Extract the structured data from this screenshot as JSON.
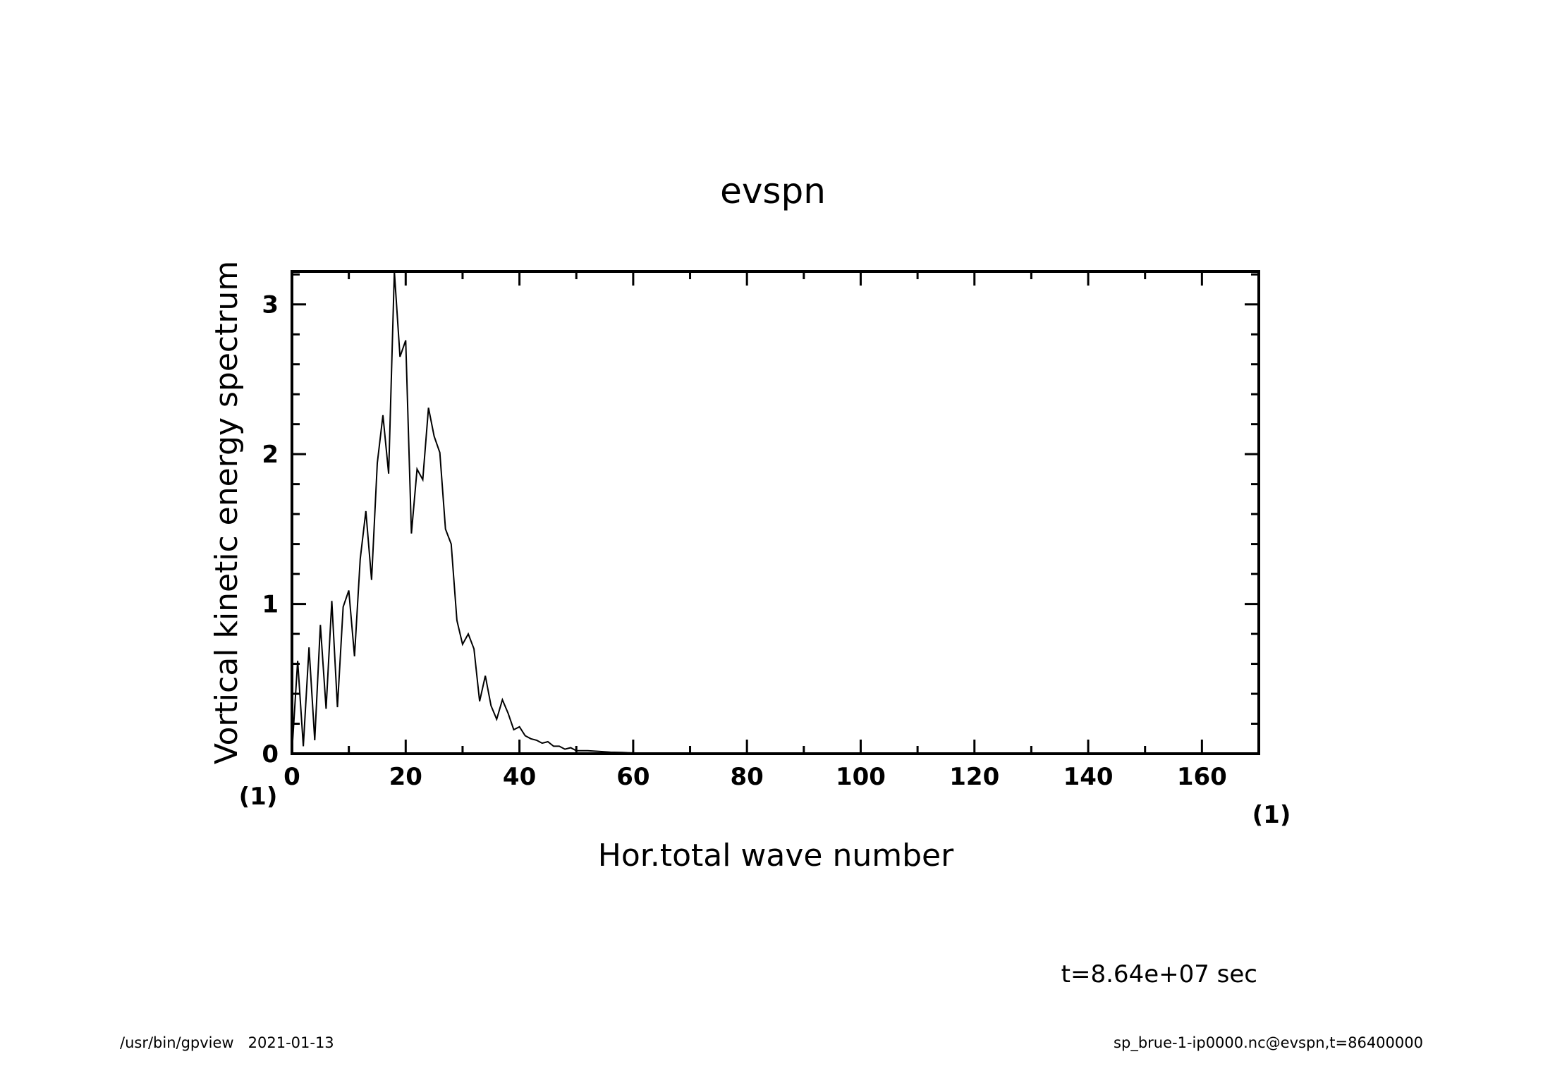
{
  "chart_data": {
    "type": "line",
    "title": "evspn",
    "xlabel": "Hor.total wave number",
    "ylabel": "Vortical kinetic energy spectrum",
    "x_unit": "(1)",
    "y_unit": "(1)",
    "xlim": [
      0,
      170
    ],
    "ylim": [
      0,
      3.22
    ],
    "x_ticks": [
      "0",
      "20",
      "40",
      "60",
      "80",
      "100",
      "120",
      "140",
      "160"
    ],
    "y_ticks": [
      "0",
      "1",
      "2",
      "3"
    ],
    "grid": false,
    "colors": {
      "line": "#000000",
      "axes": "#000000",
      "background": "#ffffff"
    },
    "series": [
      {
        "x": [
          0,
          1,
          2,
          3,
          4,
          5,
          6,
          7,
          8,
          9,
          10,
          11,
          12,
          13,
          14,
          15,
          16,
          17,
          18,
          19,
          20,
          21,
          22,
          23,
          24,
          25,
          26,
          27,
          28,
          29,
          30,
          31,
          32,
          33,
          34,
          35,
          36,
          37,
          38,
          39,
          40,
          41,
          42,
          43,
          44,
          45,
          46,
          47,
          48,
          49,
          50,
          52,
          54,
          56,
          58,
          60,
          62,
          64,
          66,
          68,
          70,
          75,
          80,
          90,
          100,
          110,
          120,
          130,
          140,
          150,
          160,
          170
        ],
        "y": [
          0.01,
          0.62,
          0.05,
          0.71,
          0.09,
          0.86,
          0.3,
          1.02,
          0.31,
          0.98,
          1.09,
          0.65,
          1.3,
          1.62,
          1.16,
          1.94,
          2.26,
          1.87,
          3.22,
          2.65,
          2.76,
          1.47,
          1.9,
          1.83,
          2.31,
          2.12,
          2.01,
          1.5,
          1.4,
          0.89,
          0.73,
          0.8,
          0.7,
          0.35,
          0.52,
          0.32,
          0.23,
          0.36,
          0.27,
          0.16,
          0.18,
          0.12,
          0.1,
          0.09,
          0.07,
          0.08,
          0.05,
          0.05,
          0.03,
          0.04,
          0.02,
          0.02,
          0.015,
          0.01,
          0.008,
          0.005,
          0.004,
          0.003,
          0.002,
          0.001,
          0.001,
          0.0005,
          0,
          0,
          0,
          0,
          0,
          0,
          0,
          0,
          0,
          0
        ]
      }
    ],
    "annotation": "t=8.64e+07 sec"
  },
  "footer": {
    "left": "/usr/bin/gpview   2021-01-13",
    "right": "sp_brue-1-ip0000.nc@evspn,t=86400000"
  }
}
